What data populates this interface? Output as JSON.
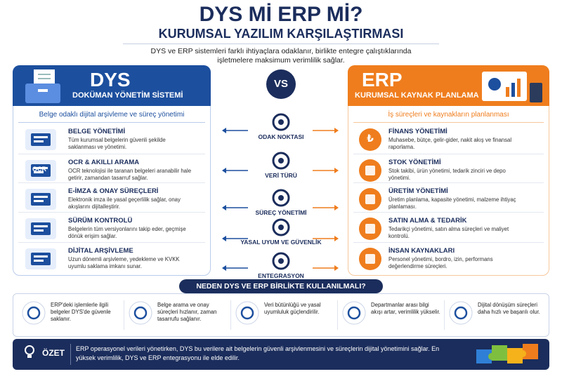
{
  "header": {
    "title": "DYS Mİ ERP Mİ?",
    "subtitle": "KURUMSAL YAZILIM KARŞILAŞTIRMASI",
    "intro": "DYS ve ERP sistemleri farklı ihtiyaçlara odaklanır, birlikte entegre çalıştıklarında işletmelere maksimum verimlilik sağlar."
  },
  "dys": {
    "name": "DYS",
    "full_name": "DOKÜMAN YÖNETİM SİSTEMİ",
    "tagline": "Belge odaklı dijital arşivleme ve süreç yönetimi",
    "items": [
      {
        "title": "BELGE YÖNETİMİ",
        "text": "Tüm kurumsal belgelerin güvenli şekilde saklanması ve yönetimi."
      },
      {
        "title": "OCR & AKILLI ARAMA",
        "text": "OCR teknolojisi ile taranan belgeleri aranabilir hale getirir, zamandan tasarruf sağlar.",
        "icon_label": "OCR"
      },
      {
        "title": "E-İMZA & ONAY SÜREÇLERİ",
        "text": "Elektronik imza ile yasal geçerlilik sağlar, onay akışlarını dijitalleştirir."
      },
      {
        "title": "SÜRÜM KONTROLÜ",
        "text": "Belgelerin tüm versiyonlarını takip eder, geçmişe dönük erişim sağlar."
      },
      {
        "title": "DİJİTAL ARŞİVLEME",
        "text": "Uzun dönemli arşivleme, yedekleme ve KVKK uyumlu saklama imkanı sunar."
      }
    ]
  },
  "vs": "VS",
  "criteria": [
    "ODAK NOKTASI",
    "VERİ TÜRÜ",
    "SÜREÇ YÖNETİMİ",
    "YASAL UYUM VE GÜVENLİK",
    "ENTEGRASYON"
  ],
  "erp": {
    "name": "ERP",
    "full_name": "KURUMSAL KAYNAK PLANLAMA",
    "tagline": "İş süreçleri ve kaynakların planlanması",
    "items": [
      {
        "title": "FİNANS YÖNETİMİ",
        "text": "Muhasebe, bütçe, gelir-gider, nakit akış ve finansal raporlama.",
        "icon_label": "₺"
      },
      {
        "title": "STOK YÖNETİMİ",
        "text": "Stok takibi, ürün yönetimi, tedarik zinciri ve depo yönetimi."
      },
      {
        "title": "ÜRETİM YÖNETİMİ",
        "text": "Üretim planlama, kapasite yönetimi, malzeme ihtiyaç planlaması."
      },
      {
        "title": "SATIN ALMA & TEDARİK",
        "text": "Tedarikçi yönetimi, satın alma süreçleri ve maliyet kontrolü."
      },
      {
        "title": "İNSAN KAYNAKLARI",
        "text": "Personel yönetimi, bordro, izin, performans değerlendirme süreçleri."
      }
    ]
  },
  "why": {
    "title": "NEDEN DYS VE ERP BİRLİKTE KULLANILMALI?",
    "items": [
      "ERP'deki işlemlerle ilgili belgeler DYS'de güvenle saklanır.",
      "Belge arama ve onay süreçleri hızlanır, zaman tasarrufu sağlanır.",
      "Veri bütünlüğü ve yasal uyumluluk güçlendirilir.",
      "Departmanlar arası bilgi akışı artar, verimlilik yükselir.",
      "Dijital dönüşüm süreçleri daha hızlı ve başarılı olur."
    ]
  },
  "summary": {
    "label": "ÖZET",
    "text": "ERP operasyonel verileri yönetirken, DYS bu verilere ait belgelerin güvenli arşivlenmesini ve süreçlerin dijital yönetimini sağlar. En yüksek verimlilik, DYS ve ERP entegrasyonu ile elde edilir."
  }
}
